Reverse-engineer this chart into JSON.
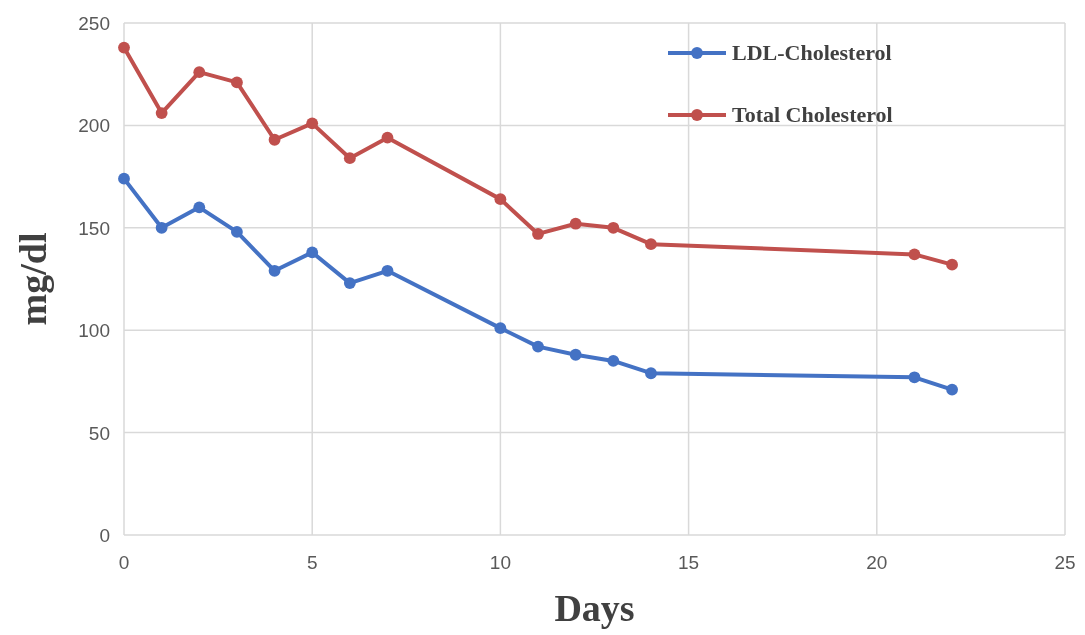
{
  "chart_data": {
    "type": "line",
    "xlabel": "Days",
    "ylabel": "mg/dl",
    "xlim": [
      0,
      25
    ],
    "xticks": [
      0,
      5,
      10,
      15,
      20,
      25
    ],
    "ylim": [
      0,
      250
    ],
    "yticks": [
      0,
      50,
      100,
      150,
      200,
      250
    ],
    "grid": true,
    "legend": "top right",
    "marker": "circle",
    "line_style": "solid",
    "series": [
      {
        "name": "LDL-Cholesterol",
        "color": "#4472c4",
        "x": [
          0,
          1,
          2,
          3,
          4,
          5,
          6,
          7,
          10,
          11,
          12,
          13,
          14,
          21,
          22
        ],
        "values": [
          174,
          150,
          160,
          148,
          129,
          138,
          123,
          129,
          101,
          92,
          88,
          85,
          79,
          77,
          71
        ]
      },
      {
        "name": "Total Cholesterol",
        "color": "#c0504d",
        "x": [
          0,
          1,
          2,
          3,
          4,
          5,
          6,
          7,
          10,
          11,
          12,
          13,
          14,
          21,
          22
        ],
        "values": [
          238,
          206,
          226,
          221,
          193,
          201,
          184,
          194,
          164,
          147,
          152,
          150,
          142,
          137,
          132
        ]
      }
    ]
  }
}
